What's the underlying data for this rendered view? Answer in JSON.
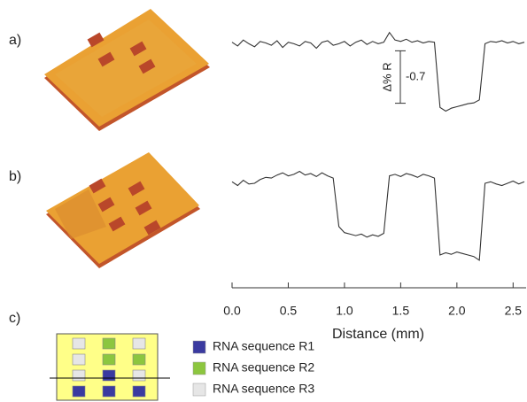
{
  "panel_labels": [
    "a)",
    "b)",
    "c)"
  ],
  "chart_data": [
    {
      "type": "line",
      "color": "#333333",
      "x": [
        0,
        0.05,
        0.1,
        0.15,
        0.2,
        0.25,
        0.3,
        0.35,
        0.4,
        0.45,
        0.5,
        0.55,
        0.6,
        0.65,
        0.7,
        0.75,
        0.8,
        0.85,
        0.9,
        0.95,
        1.0,
        1.05,
        1.1,
        1.15,
        1.2,
        1.25,
        1.3,
        1.35,
        1.4,
        1.45,
        1.5,
        1.55,
        1.6,
        1.65,
        1.7,
        1.75,
        1.8,
        1.85,
        1.9,
        1.95,
        2.0,
        2.05,
        2.1,
        2.15,
        2.2,
        2.25,
        2.3,
        2.35,
        2.4,
        2.45,
        2.5,
        2.55,
        2.6
      ],
      "values": [
        0.02,
        -0.03,
        0.05,
        0.0,
        -0.04,
        0.03,
        0.01,
        -0.02,
        0.04,
        -0.05,
        0.02,
        0.0,
        -0.03,
        0.03,
        0.01,
        -0.06,
        0.02,
        0.04,
        -0.02,
        0.0,
        0.03,
        -0.03,
        0.02,
        0.05,
        -0.01,
        0.03,
        0.0,
        0.02,
        0.15,
        0.05,
        0.03,
        0.06,
        0.02,
        0.04,
        0.01,
        0.03,
        0.02,
        -0.85,
        -0.9,
        -0.86,
        -0.84,
        -0.82,
        -0.8,
        -0.79,
        -0.75,
        0.0,
        0.03,
        0.02,
        0.04,
        0.01,
        0.03,
        0.0,
        0.02
      ],
      "xlim": [
        0,
        2.6
      ],
      "ylim": [
        -1.0,
        0.3
      ],
      "scale_bar": {
        "label": "Δ% R",
        "value": -0.7
      }
    },
    {
      "type": "line",
      "color": "#333333",
      "x": [
        0,
        0.05,
        0.1,
        0.15,
        0.2,
        0.25,
        0.3,
        0.35,
        0.4,
        0.45,
        0.5,
        0.55,
        0.6,
        0.65,
        0.7,
        0.75,
        0.8,
        0.85,
        0.9,
        0.95,
        1.0,
        1.05,
        1.1,
        1.15,
        1.2,
        1.25,
        1.3,
        1.35,
        1.4,
        1.45,
        1.5,
        1.55,
        1.6,
        1.65,
        1.7,
        1.75,
        1.8,
        1.85,
        1.9,
        1.95,
        2.0,
        2.05,
        2.1,
        2.15,
        2.2,
        2.25,
        2.3,
        2.35,
        2.4,
        2.45,
        2.5,
        2.55,
        2.6
      ],
      "values": [
        0.0,
        -0.05,
        0.02,
        -0.03,
        -0.02,
        0.03,
        0.06,
        0.05,
        0.09,
        0.12,
        0.08,
        0.1,
        0.14,
        0.09,
        0.11,
        0.07,
        0.12,
        0.08,
        0.05,
        -0.6,
        -0.68,
        -0.7,
        -0.72,
        -0.7,
        -0.74,
        -0.71,
        -0.73,
        -0.69,
        0.08,
        0.1,
        0.07,
        0.11,
        0.09,
        0.06,
        0.1,
        0.08,
        0.05,
        -0.98,
        -0.95,
        -0.97,
        -0.94,
        -0.96,
        -0.98,
        -1.0,
        -1.05,
        -0.02,
        0.0,
        -0.03,
        -0.05,
        -0.02,
        0.01,
        -0.03,
        0.0
      ],
      "xlim": [
        0,
        2.6
      ],
      "ylim": [
        -1.3,
        0.3
      ],
      "xlabel": "Distance (mm)",
      "xticks": [
        {
          "value": 0,
          "label": "0.0"
        },
        0.5,
        {
          "value": 1,
          "label": "1.0"
        },
        1.5,
        {
          "value": 2,
          "label": "2.0"
        },
        2.5
      ]
    }
  ],
  "legend": [
    {
      "label": "RNA sequence R1",
      "color": "#3a3aa0"
    },
    {
      "label": "RNA sequence R2",
      "color": "#8cc63f"
    },
    {
      "label": "RNA sequence R3",
      "color": "#e6e6e6"
    }
  ]
}
